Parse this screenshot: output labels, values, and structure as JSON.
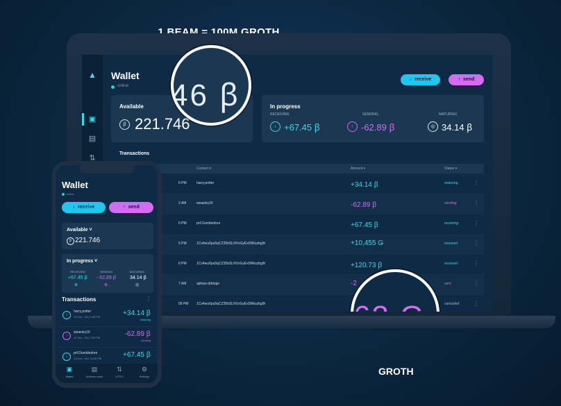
{
  "caption_top": "1 BEAM = 100M GROTH",
  "caption_bottom": "GROTH",
  "colors": {
    "accent_cyan": "#1fc7ee",
    "accent_purple": "#d46bf0",
    "bg": "#0f2a44"
  },
  "desktop": {
    "title": "Wallet",
    "status": "online",
    "receive_label": "receive",
    "send_label": "send",
    "available": {
      "label": "Available",
      "amount": "221.746"
    },
    "in_progress": {
      "label": "In progress",
      "receiving": {
        "label": "RECEIVING",
        "amount": "+67.45 ꞵ"
      },
      "sending": {
        "label": "SENDING",
        "amount": "-62.89 ꞵ"
      },
      "maturing": {
        "label": "MATURING",
        "amount": "34.14 ꞵ"
      }
    },
    "transactions_title": "Transactions",
    "columns": {
      "contact": "Contact ▾",
      "amount": "Amount ▾",
      "status": "Status ▾"
    },
    "rows": [
      {
        "time": "6 PM",
        "contact": "harry.potter",
        "amount": "+34.14 ꞵ",
        "status": "maturing",
        "color": "#39d8e6"
      },
      {
        "time": "2 AM",
        "contact": "weasley16",
        "amount": "-62.89 ꞵ",
        "status": "sending",
        "color": "#d46bf0"
      },
      {
        "time": "6 PM",
        "contact": "prf.Dumbledore",
        "amount": "+67.45 ꞵ",
        "status": "receiving",
        "color": "#39d8e6"
      },
      {
        "time": "5 PM",
        "contact": "1Cs4wu6pu5qCZ35bSLNVzGyEx5N6uzbg9t",
        "amount": "+10,455 Ǥ",
        "status": "received",
        "color": "#39d8e6"
      },
      {
        "time": "6 PM",
        "contact": "1Cs4wu6pu5qCZ35bSLNVzGyEx5N6uzbg9t",
        "amount": "+120.73 ꞵ",
        "status": "received",
        "color": "#39d8e6"
      },
      {
        "time": "7 AM",
        "contact": "aphias-dddoge",
        "amount": "-2",
        "status": "sent",
        "color": "#d46bf0"
      },
      {
        "time": "09 PM",
        "contact": "1Cs4wu6pu5qCZ35bSLNVzGyEx5N6uzbg9t",
        "amount": "",
        "status": "cancelled",
        "color": "#9fb4c7"
      }
    ],
    "magnifier_top": "46 ꞵ",
    "magnifier_bottom": "63 Ǥ"
  },
  "phone": {
    "title": "Wallet",
    "status": "online",
    "receive_label": "receive",
    "send_label": "send",
    "available_label": "Available",
    "available_amount": "221.746",
    "in_progress_label": "In progress",
    "receiving_label": "RECEIVING",
    "receiving_amount": "+67.45 ꞵ",
    "sending_label": "SENDING",
    "sending_amount": "- 62.89 ꞵ",
    "maturing_label": "MATURING",
    "maturing_amount": "34.14 ꞵ",
    "transactions_title": "Transactions",
    "rows": [
      {
        "name": "harry.potter",
        "date": "12 Dec, '18 | 5:46 PM",
        "amount": "+34.14 ꞵ",
        "status": "maturing",
        "color": "#39d8e6",
        "icon": "↓"
      },
      {
        "name": "weasley16",
        "date": "12 Dec, '18 | 7:02 PM",
        "amount": "-62.89 ꞵ",
        "status": "sending",
        "color": "#d46bf0",
        "icon": "↑"
      },
      {
        "name": "prf.Dumbledore",
        "date": "12 Dec, '18 | 11:09 PM",
        "amount": "+67.45 ꞵ",
        "status": "",
        "color": "#39d8e6",
        "icon": "↓"
      }
    ],
    "nav": [
      {
        "label": "Wallet",
        "icon": "▣"
      },
      {
        "label": "Address book",
        "icon": "▤"
      },
      {
        "label": "UTXO",
        "icon": "⇅"
      },
      {
        "label": "Settings",
        "icon": "⚙"
      }
    ]
  }
}
